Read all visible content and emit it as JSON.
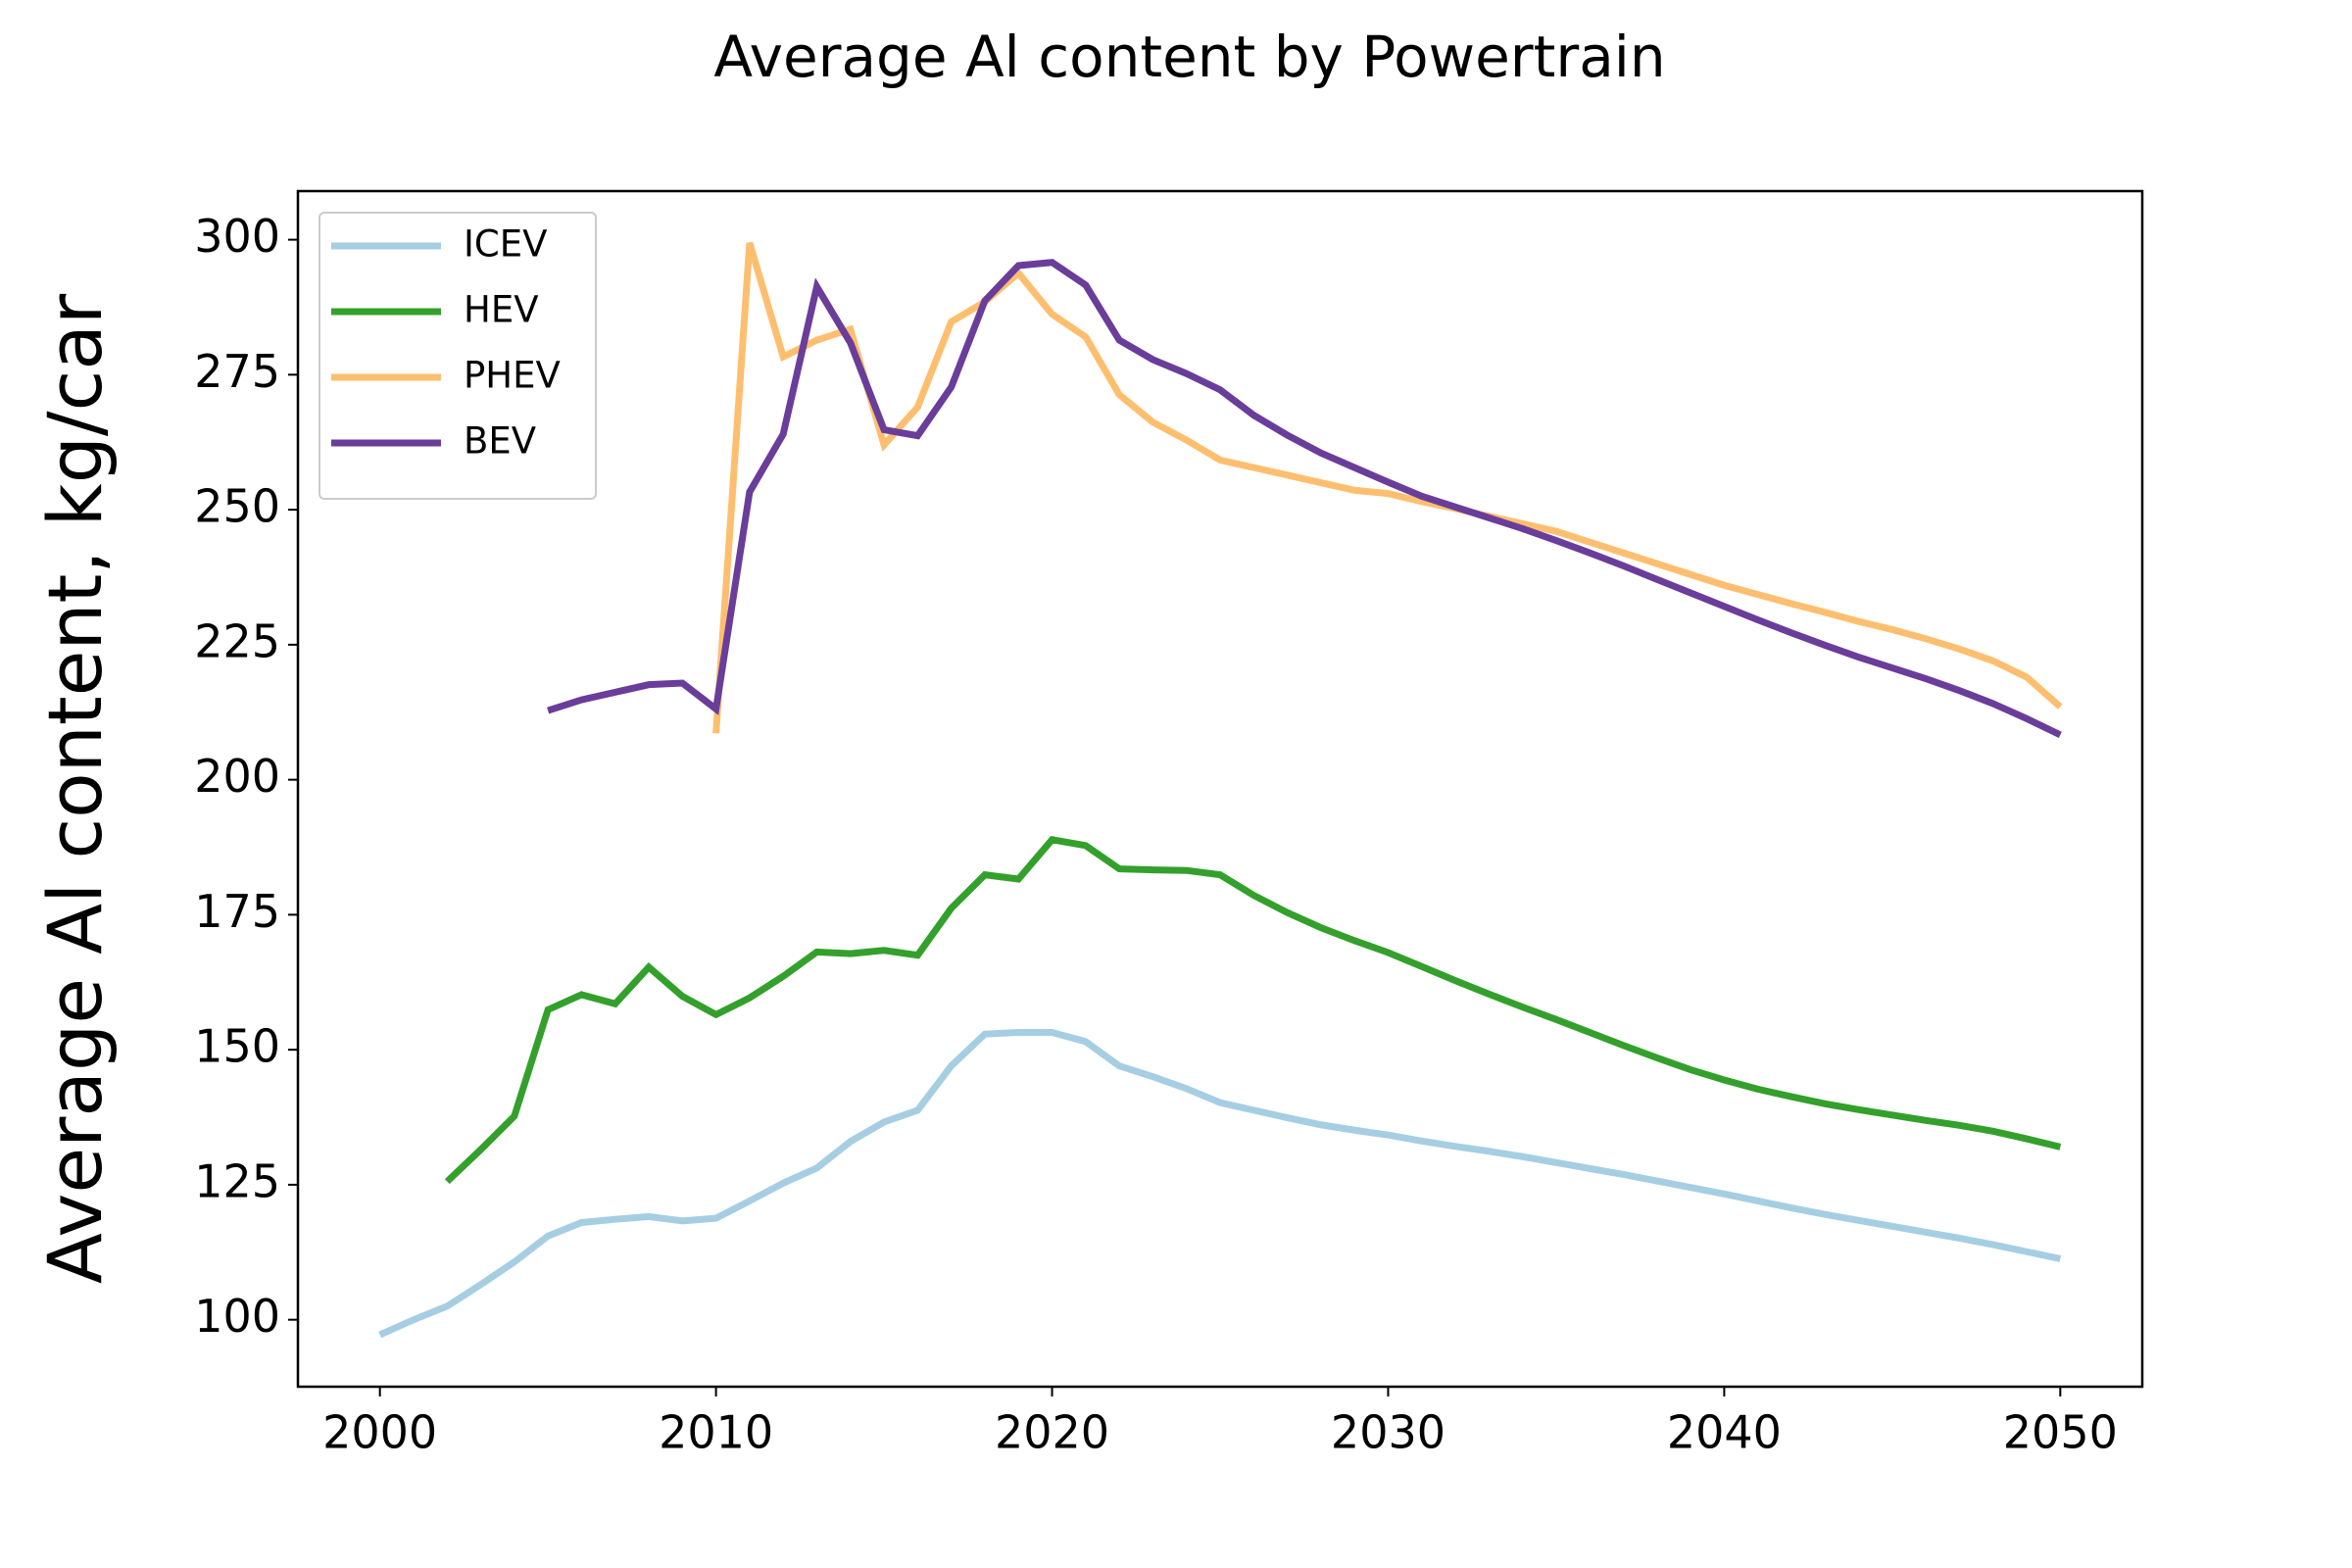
{
  "chart_data": {
    "type": "line",
    "title": "Average Al content by Powertrain",
    "y_label": "Average Al content, kg/car",
    "x": [
      2000,
      2001,
      2002,
      2003,
      2004,
      2005,
      2006,
      2007,
      2008,
      2009,
      2010,
      2011,
      2012,
      2013,
      2014,
      2015,
      2016,
      2017,
      2018,
      2019,
      2020,
      2021,
      2022,
      2023,
      2024,
      2025,
      2026,
      2027,
      2028,
      2029,
      2030,
      2031,
      2032,
      2033,
      2034,
      2035,
      2036,
      2037,
      2038,
      2039,
      2040,
      2041,
      2042,
      2043,
      2044,
      2045,
      2046,
      2047,
      2048,
      2049,
      2050
    ],
    "series": [
      {
        "name": "ICEV",
        "color": "#a6cee3",
        "values": [
          97.2,
          100,
          102.5,
          106.5,
          110.7,
          115.5,
          118,
          118.6,
          119.1,
          118.3,
          118.8,
          122,
          125.3,
          128.1,
          133,
          136.6,
          138.8,
          147,
          152.9,
          153.2,
          153.2,
          151.5,
          147,
          145,
          142.8,
          140.2,
          138.8,
          137.4,
          136.1,
          135.1,
          134.2,
          133.1,
          132.1,
          131.2,
          130.2,
          129.1,
          128,
          126.9,
          125.7,
          124.5,
          123.3,
          122,
          120.7,
          119.5,
          118.4,
          117.3,
          116.2,
          115.1,
          113.9,
          112.6,
          111.3
        ]
      },
      {
        "name": "HEV",
        "color": "#33a02c",
        "values": [
          null,
          null,
          125.6,
          131.5,
          137.7,
          157.4,
          160.2,
          158.5,
          165.3,
          159.9,
          156.5,
          159.6,
          163.6,
          168.1,
          167.8,
          168.4,
          167.5,
          176.2,
          182.4,
          181.6,
          188.9,
          187.8,
          183.5,
          183.3,
          183.2,
          182.4,
          178.6,
          175.4,
          172.6,
          170.2,
          168,
          165.4,
          162.8,
          160.3,
          157.9,
          155.6,
          153.2,
          150.8,
          148.5,
          146.3,
          144.4,
          142.7,
          141.3,
          140,
          138.9,
          137.9,
          136.9,
          136,
          134.9,
          133.5,
          132
        ]
      },
      {
        "name": "PHEV",
        "color": "#fdbf6f",
        "values": [
          null,
          null,
          null,
          null,
          null,
          null,
          null,
          null,
          null,
          null,
          208.6,
          299.4,
          278.3,
          281.4,
          283.4,
          262,
          269,
          284.8,
          288.5,
          293.8,
          286.2,
          282,
          271.3,
          266.2,
          262.9,
          259.2,
          257.8,
          256.4,
          255,
          253.6,
          253,
          251.5,
          250.2,
          248.8,
          247.4,
          246,
          244,
          242,
          240,
          238,
          236,
          234.3,
          232.6,
          231,
          229.3,
          227.8,
          226.1,
          224.2,
          222,
          219,
          213.5
        ]
      },
      {
        "name": "BEV",
        "color": "#6a3d9a",
        "values": [
          null,
          null,
          null,
          null,
          null,
          212.8,
          214.8,
          216.2,
          217.6,
          217.9,
          213.1,
          253.3,
          264,
          291.3,
          280.9,
          264.8,
          263.7,
          272.7,
          288.7,
          295.2,
          295.8,
          291.6,
          281.4,
          277.8,
          275.2,
          272.2,
          267.5,
          263.8,
          260.5,
          257.8,
          255.1,
          252.5,
          250.5,
          248.5,
          246.5,
          244.3,
          242,
          239.6,
          237.1,
          234.6,
          232.1,
          229.6,
          227.2,
          224.9,
          222.7,
          220.7,
          218.7,
          216.5,
          214.1,
          211.3,
          208.3
        ]
      }
    ],
    "xlim": [
      1997.56,
      2052.44
    ],
    "xticks": [
      2000,
      2010,
      2020,
      2030,
      2040,
      2050
    ],
    "ylim": [
      87.6,
      309
    ],
    "yticks": [
      100,
      125,
      150,
      175,
      200,
      225,
      250,
      275,
      300
    ],
    "grid": false,
    "legend": "upper left"
  }
}
